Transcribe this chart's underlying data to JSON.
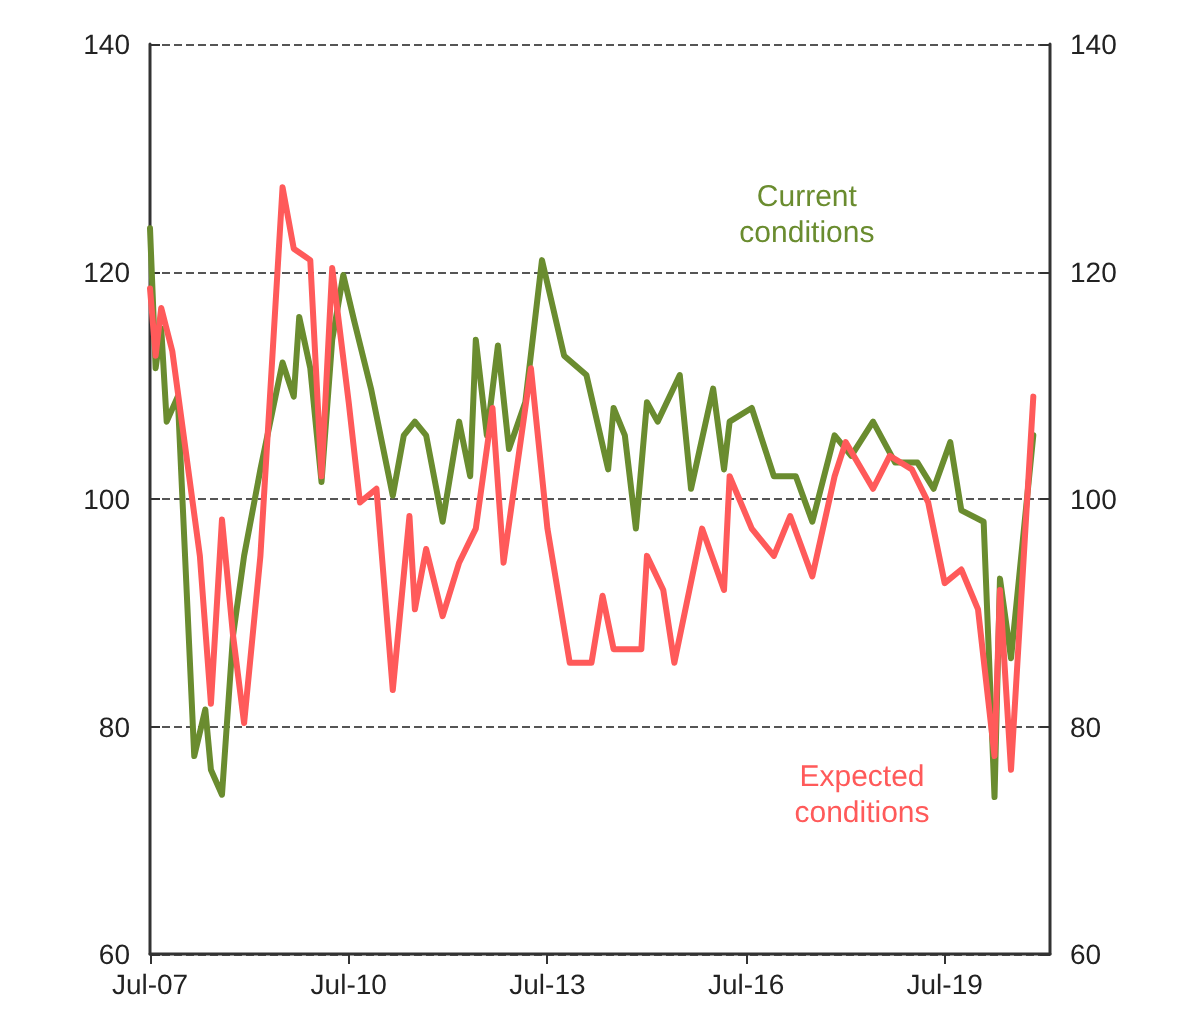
{
  "chart_data": {
    "type": "line",
    "xlim": [
      "2007-07",
      "2021-02"
    ],
    "xticks": [
      {
        "value": "2007-07",
        "label": "Jul-07"
      },
      {
        "value": "2010-07",
        "label": "Jul-10"
      },
      {
        "value": "2013-07",
        "label": "Jul-13"
      },
      {
        "value": "2016-07",
        "label": "Jul-16"
      },
      {
        "value": "2019-07",
        "label": "Jul-19"
      }
    ],
    "ylim": [
      60,
      140
    ],
    "yticks": [
      60,
      80,
      100,
      120,
      140
    ],
    "y2lim": [
      60,
      140
    ],
    "y2ticks": [
      60,
      80,
      100,
      120,
      140
    ],
    "grid": "y",
    "legend": false,
    "marker": "none",
    "line_style": "solid",
    "series": [
      {
        "name": "Current conditions",
        "color": "#6a8c2f",
        "x": [
          "2007-07",
          "2007-08",
          "2007-09",
          "2007-10",
          "2007-12",
          "2008-03",
          "2008-05",
          "2008-06",
          "2008-08",
          "2008-10",
          "2008-12",
          "2009-03",
          "2009-07",
          "2009-09",
          "2009-10",
          "2009-12",
          "2010-02",
          "2010-04",
          "2010-06",
          "2010-08",
          "2010-11",
          "2011-03",
          "2011-05",
          "2011-07",
          "2011-09",
          "2011-12",
          "2012-03",
          "2012-05",
          "2012-06",
          "2012-08",
          "2012-10",
          "2012-12",
          "2013-03",
          "2013-06",
          "2013-10",
          "2014-02",
          "2014-06",
          "2014-07",
          "2014-09",
          "2014-11",
          "2015-01",
          "2015-03",
          "2015-07",
          "2015-09",
          "2016-01",
          "2016-03",
          "2016-04",
          "2016-08",
          "2016-12",
          "2017-04",
          "2017-07",
          "2017-11",
          "2018-02",
          "2018-06",
          "2018-10",
          "2019-02",
          "2019-05",
          "2019-08",
          "2019-10",
          "2020-02",
          "2020-04",
          "2020-05",
          "2020-07",
          "2020-11"
        ],
        "values": [
          123.8,
          111.5,
          115,
          106.8,
          109,
          77.4,
          81.5,
          76.2,
          74,
          88,
          95,
          102.6,
          112,
          109,
          116,
          111.5,
          101.5,
          114,
          119.7,
          115.6,
          109.7,
          100.3,
          105.6,
          106.8,
          105.6,
          98,
          106.8,
          102,
          114,
          105.6,
          113.5,
          104.4,
          108.5,
          121,
          112.6,
          110.9,
          102.6,
          108,
          105.6,
          97.4,
          108.5,
          106.8,
          110.9,
          100.9,
          109.7,
          102.6,
          106.8,
          108,
          102,
          102,
          98,
          105.6,
          103.8,
          106.8,
          103.2,
          103.2,
          100.9,
          105,
          99,
          98,
          73.8,
          93,
          86,
          105.6
        ]
      },
      {
        "name": "Expected conditions",
        "color": "#ff5a5a",
        "x": [
          "2007-07",
          "2007-08",
          "2007-09",
          "2007-11",
          "2008-04",
          "2008-06",
          "2008-08",
          "2008-10",
          "2008-12",
          "2009-03",
          "2009-07",
          "2009-09",
          "2009-12",
          "2010-02",
          "2010-04",
          "2010-07",
          "2010-09",
          "2010-12",
          "2011-03",
          "2011-06",
          "2011-07",
          "2011-09",
          "2011-12",
          "2012-03",
          "2012-06",
          "2012-09",
          "2012-11",
          "2013-04",
          "2013-07",
          "2013-11",
          "2014-03",
          "2014-05",
          "2014-07",
          "2014-12",
          "2015-01",
          "2015-04",
          "2015-06",
          "2015-11",
          "2016-03",
          "2016-04",
          "2016-08",
          "2016-12",
          "2017-03",
          "2017-07",
          "2017-11",
          "2018-01",
          "2018-06",
          "2018-09",
          "2019-01",
          "2019-04",
          "2019-07",
          "2019-10",
          "2020-01",
          "2020-04",
          "2020-05",
          "2020-07",
          "2020-11"
        ],
        "values": [
          118.5,
          112.6,
          116.8,
          113,
          95,
          82,
          98.2,
          88,
          80.3,
          95,
          127.4,
          122,
          121,
          102,
          120.3,
          108.5,
          99.7,
          100.9,
          83.2,
          98.5,
          90.3,
          95.6,
          89.7,
          94.4,
          97.4,
          108,
          94.4,
          111.5,
          97.4,
          85.6,
          85.6,
          91.5,
          86.8,
          86.8,
          95,
          92,
          85.6,
          97.4,
          92,
          102,
          97.4,
          95,
          98.5,
          93.2,
          102,
          105,
          100.9,
          103.8,
          102.6,
          99.7,
          92.6,
          93.8,
          90.3,
          77.4,
          92,
          76.2,
          109
        ]
      }
    ]
  }
}
